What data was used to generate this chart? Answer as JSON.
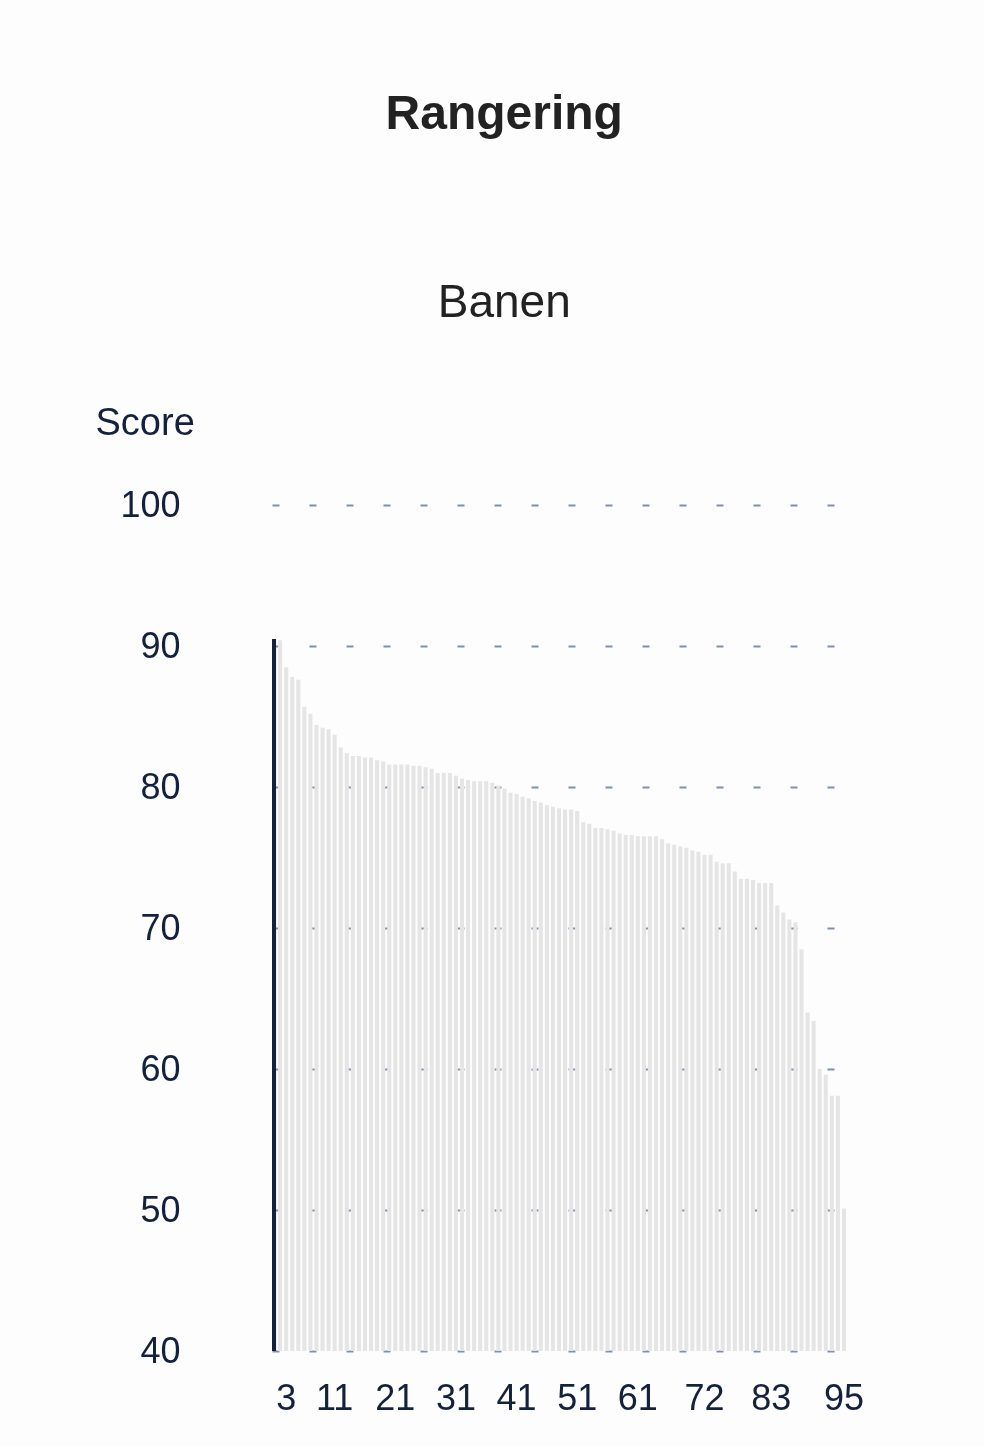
{
  "chart_data": {
    "type": "bar",
    "title": "Rangering",
    "subtitle": "Banen",
    "ylabel": "Score",
    "categories": [
      null,
      null,
      "3",
      null,
      null,
      null,
      null,
      null,
      null,
      null,
      "11",
      null,
      null,
      null,
      null,
      null,
      null,
      null,
      null,
      null,
      "21",
      null,
      null,
      null,
      null,
      null,
      null,
      null,
      null,
      null,
      "31",
      null,
      null,
      null,
      null,
      null,
      null,
      null,
      null,
      null,
      "41",
      null,
      null,
      null,
      null,
      null,
      null,
      null,
      null,
      null,
      "51",
      null,
      null,
      null,
      null,
      null,
      null,
      null,
      null,
      null,
      "61",
      null,
      null,
      null,
      null,
      null,
      null,
      null,
      null,
      null,
      null,
      "72",
      null,
      null,
      null,
      null,
      null,
      null,
      null,
      null,
      null,
      null,
      "83",
      null,
      null,
      null,
      null,
      null,
      null,
      null,
      null,
      null,
      null,
      null,
      "95"
    ],
    "values": [
      90.5,
      90.4,
      88.5,
      87.8,
      87.6,
      85.7,
      85.2,
      84.4,
      84.2,
      84.1,
      83.7,
      82.8,
      82.4,
      82.2,
      82.2,
      82.1,
      82.1,
      81.9,
      81.8,
      81.6,
      81.6,
      81.6,
      81.6,
      81.5,
      81.5,
      81.4,
      81.3,
      81.0,
      81.0,
      81.0,
      80.8,
      80.6,
      80.5,
      80.4,
      80.4,
      80.4,
      80.3,
      80.1,
      79.9,
      79.6,
      79.5,
      79.3,
      79.2,
      79.0,
      78.9,
      78.7,
      78.6,
      78.5,
      78.4,
      78.4,
      78.3,
      77.5,
      77.4,
      77.1,
      77.1,
      77.0,
      76.9,
      76.7,
      76.6,
      76.6,
      76.5,
      76.5,
      76.5,
      76.5,
      76.3,
      76.0,
      75.9,
      75.8,
      75.7,
      75.5,
      75.4,
      75.2,
      75.2,
      74.7,
      74.6,
      74.6,
      74.0,
      73.5,
      73.5,
      73.4,
      73.2,
      73.2,
      73.2,
      71.6,
      71.1,
      70.6,
      70.4,
      68.5,
      64.0,
      63.4,
      60.0,
      59.6,
      58.1,
      58.1,
      50.1
    ],
    "colors": [
      "#14213d",
      "#e5e5e5",
      "#e5e5e5",
      "#e5e5e5",
      "#e5e5e5",
      "#e5e5e5",
      "#e5e5e5",
      "#e5e5e5",
      "#e5e5e5",
      "#e5e5e5",
      "#e5e5e5",
      "#e5e5e5",
      "#e5e5e5",
      "#e5e5e5",
      "#e5e5e5",
      "#e5e5e5",
      "#e5e5e5",
      "#e5e5e5",
      "#e5e5e5",
      "#e5e5e5",
      "#e5e5e5",
      "#e5e5e5",
      "#e5e5e5",
      "#e5e5e5",
      "#e5e5e5",
      "#e5e5e5",
      "#e5e5e5",
      "#e5e5e5",
      "#e5e5e5",
      "#e5e5e5",
      "#e5e5e5",
      "#e5e5e5",
      "#e5e5e5",
      "#e5e5e5",
      "#e5e5e5",
      "#e5e5e5",
      "#e5e5e5",
      "#e5e5e5",
      "#e5e5e5",
      "#e5e5e5",
      "#e5e5e5",
      "#e5e5e5",
      "#e5e5e5",
      "#e5e5e5",
      "#e5e5e5",
      "#e5e5e5",
      "#e5e5e5",
      "#e5e5e5",
      "#e5e5e5",
      "#e5e5e5",
      "#e5e5e5",
      "#e5e5e5",
      "#e5e5e5",
      "#e5e5e5",
      "#e5e5e5",
      "#e5e5e5",
      "#e5e5e5",
      "#e5e5e5",
      "#e5e5e5",
      "#e5e5e5",
      "#e5e5e5",
      "#e5e5e5",
      "#e5e5e5",
      "#e5e5e5",
      "#e5e5e5",
      "#e5e5e5",
      "#e5e5e5",
      "#e5e5e5",
      "#e5e5e5",
      "#e5e5e5",
      "#e5e5e5",
      "#e5e5e5",
      "#e5e5e5",
      "#e5e5e5",
      "#e5e5e5",
      "#e5e5e5",
      "#e5e5e5",
      "#e5e5e5",
      "#e5e5e5",
      "#e5e5e5",
      "#e5e5e5",
      "#e5e5e5",
      "#e5e5e5",
      "#e5e5e5",
      "#e5e5e5",
      "#e5e5e5",
      "#e5e5e5",
      "#e5e5e5",
      "#e5e5e5",
      "#e5e5e5",
      "#e5e5e5",
      "#e5e5e5",
      "#e5e5e5",
      "#e5e5e5",
      "#e5e5e5"
    ],
    "ylim": [
      40,
      100
    ],
    "yticks": [
      40,
      50,
      60,
      70,
      80,
      90,
      100
    ],
    "grid": "y"
  }
}
